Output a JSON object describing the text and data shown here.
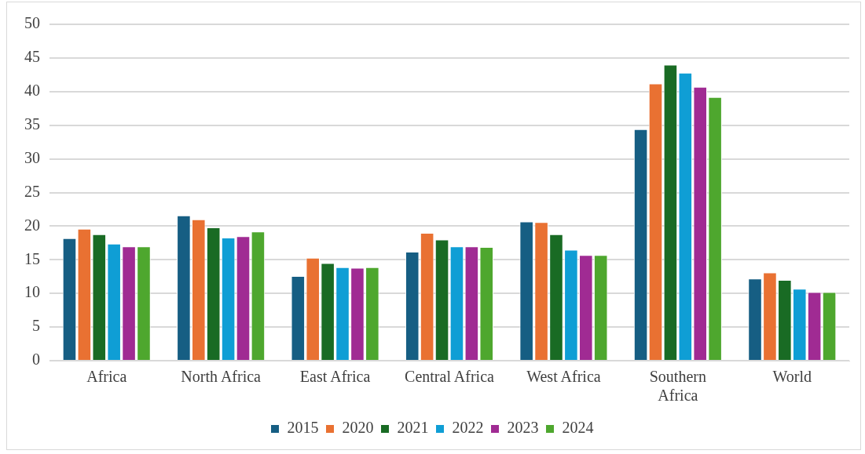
{
  "chart_data": {
    "type": "bar",
    "categories": [
      "Africa",
      "North Africa",
      "East Africa",
      "Central Africa",
      "West Africa",
      "Southern Africa",
      "World"
    ],
    "series": [
      {
        "name": "2015",
        "color": "#165e83",
        "values": [
          18.2,
          21.6,
          12.6,
          16.2,
          20.7,
          34.4,
          12.2
        ]
      },
      {
        "name": "2020",
        "color": "#e97132",
        "values": [
          19.6,
          21.0,
          15.3,
          19.0,
          20.6,
          41.2,
          13.1
        ]
      },
      {
        "name": "2021",
        "color": "#196b24",
        "values": [
          18.8,
          19.8,
          14.5,
          18.0,
          18.8,
          44.0,
          12.0
        ]
      },
      {
        "name": "2022",
        "color": "#0f9ed5",
        "values": [
          17.4,
          18.3,
          13.9,
          17.0,
          16.5,
          42.8,
          10.7
        ]
      },
      {
        "name": "2023",
        "color": "#a02b93",
        "values": [
          17.0,
          18.5,
          13.8,
          17.0,
          15.7,
          40.7,
          10.2
        ]
      },
      {
        "name": "2024",
        "color": "#4ea72e",
        "values": [
          17.0,
          19.2,
          13.9,
          16.9,
          15.7,
          39.2,
          10.2
        ]
      }
    ],
    "ylim": [
      0,
      50
    ],
    "yticks": [
      0,
      5,
      10,
      15,
      20,
      25,
      30,
      35,
      40,
      45,
      50
    ],
    "grid": "y",
    "legend": "bottom"
  }
}
